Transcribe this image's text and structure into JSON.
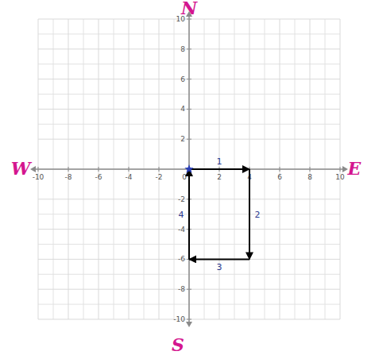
{
  "chart_data": {
    "type": "line",
    "xlim": [
      -10,
      10
    ],
    "ylim": [
      -10,
      10
    ],
    "xticks": [
      -10,
      -8,
      -6,
      -4,
      -2,
      0,
      2,
      4,
      6,
      8,
      10
    ],
    "yticks": [
      -10,
      -8,
      -6,
      -4,
      -2,
      2,
      4,
      6,
      8,
      10
    ],
    "grid": true,
    "compass": {
      "north": "N",
      "east": "E",
      "south": "S",
      "west": "W"
    },
    "series": [
      {
        "type": "line",
        "x": [
          0,
          4,
          4,
          0,
          0
        ],
        "values": [
          0,
          0,
          -6,
          -6,
          0
        ],
        "color": "#000000",
        "marker": "arrow",
        "annotations": [
          "1",
          "2",
          "3",
          "4"
        ]
      },
      {
        "type": "scatter",
        "x": [
          0
        ],
        "values": [
          0
        ],
        "color": "#2a3fb5",
        "marker": "star"
      }
    ]
  }
}
